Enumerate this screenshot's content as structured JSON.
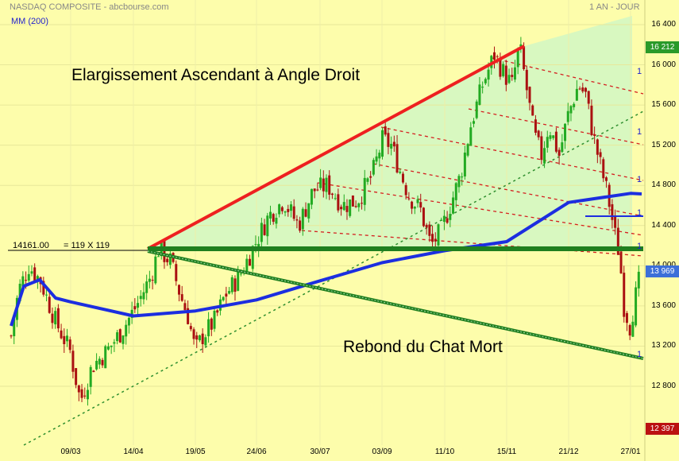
{
  "header": {
    "title": "NASDAQ COMPOSITE - abcbourse.com",
    "period": "1 AN - JOUR",
    "ma_label": "MM (200)"
  },
  "annotations": {
    "pattern": "Elargissement Ascendant à Angle Droit",
    "rebound": "Rebond du Chat Mort",
    "level": "14161.00",
    "measure": "= 119 X 119",
    "fib_mark": "1"
  },
  "badges": {
    "high": "16 212",
    "current": "13 969",
    "low": "12 397"
  },
  "colors": {
    "background": "#fdfdab",
    "triangle_fill": "#d8f8c0",
    "bull_candle": "#22aa22",
    "bear_candle": "#aa1111",
    "ma_line": "#1c2ee0",
    "resistance": "#ee2020",
    "support": "#1f7f1f",
    "high_badge": "#2a9a2a",
    "current_badge": "#3c6fd8",
    "low_badge": "#bb1111"
  },
  "chart_data": {
    "type": "candlestick",
    "y_ticks": [
      16400,
      16000,
      15600,
      15200,
      14800,
      14400,
      14000,
      13600,
      13200,
      12800
    ],
    "y_tick_labels": [
      "16 400",
      "16 000",
      "15 600",
      "15 200",
      "14 800",
      "14 400",
      "14 000",
      "13 600",
      "13 200",
      "12 800"
    ],
    "ylim": [
      12350,
      16600
    ],
    "x_tick_labels": [
      "09/03",
      "14/04",
      "19/05",
      "24/06",
      "30/07",
      "03/09",
      "11/10",
      "15/11",
      "21/12",
      "27/01"
    ],
    "series": [
      {
        "name": "MM (200)",
        "x": [
          "09/03",
          "14/04",
          "19/05",
          "24/06",
          "30/07",
          "03/09",
          "11/10",
          "15/11",
          "21/12",
          "27/01"
        ],
        "values": [
          13640,
          13500,
          13550,
          13660,
          13850,
          14030,
          14150,
          14240,
          14630,
          14720
        ]
      }
    ],
    "key_points": {
      "high": 16212,
      "current": 13969,
      "low": 12397,
      "horizontal_level": 14161
    },
    "close_path": [
      [
        0,
        13300
      ],
      [
        5,
        13750
      ],
      [
        12,
        14000
      ],
      [
        20,
        13850
      ],
      [
        30,
        13450
      ],
      [
        40,
        13150
      ],
      [
        47,
        12650
      ],
      [
        55,
        13000
      ],
      [
        65,
        13150
      ],
      [
        75,
        13350
      ],
      [
        85,
        13600
      ],
      [
        95,
        13900
      ],
      [
        100,
        14161
      ],
      [
        108,
        14050
      ],
      [
        115,
        13700
      ],
      [
        120,
        13500
      ],
      [
        125,
        13150
      ],
      [
        130,
        13300
      ],
      [
        138,
        13450
      ],
      [
        145,
        13700
      ],
      [
        155,
        13900
      ],
      [
        165,
        14200
      ],
      [
        175,
        14500
      ],
      [
        185,
        14650
      ],
      [
        195,
        14400
      ],
      [
        205,
        14750
      ],
      [
        215,
        14800
      ],
      [
        225,
        14600
      ],
      [
        235,
        14650
      ],
      [
        245,
        14900
      ],
      [
        252,
        15250
      ],
      [
        258,
        15200
      ],
      [
        265,
        14900
      ],
      [
        270,
        14700
      ],
      [
        278,
        14550
      ],
      [
        285,
        14200
      ],
      [
        292,
        14350
      ],
      [
        298,
        14600
      ],
      [
        305,
        14900
      ],
      [
        312,
        15400
      ],
      [
        320,
        15800
      ],
      [
        328,
        16100
      ],
      [
        335,
        15900
      ],
      [
        340,
        15800
      ],
      [
        345,
        16200
      ],
      [
        350,
        15750
      ],
      [
        355,
        15300
      ],
      [
        360,
        15100
      ],
      [
        365,
        15400
      ],
      [
        372,
        15100
      ],
      [
        378,
        15500
      ],
      [
        385,
        15800
      ],
      [
        390,
        15700
      ],
      [
        395,
        15300
      ],
      [
        400,
        15000
      ],
      [
        405,
        14700
      ],
      [
        410,
        14300
      ],
      [
        413,
        14100
      ],
      [
        416,
        13600
      ],
      [
        420,
        13400
      ],
      [
        424,
        13700
      ],
      [
        428,
        13969
      ]
    ]
  }
}
